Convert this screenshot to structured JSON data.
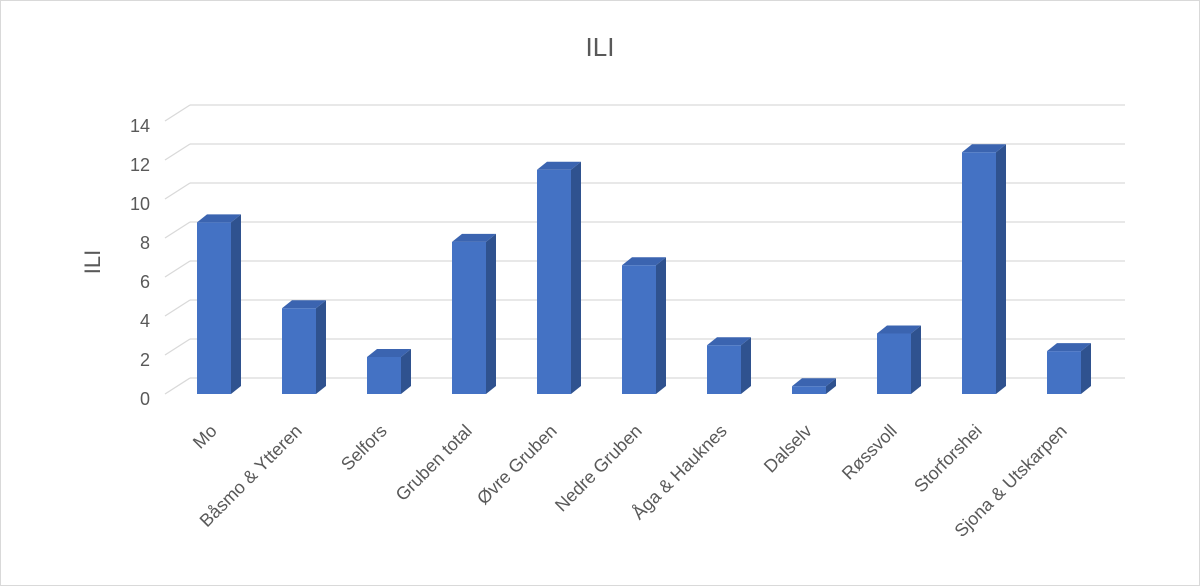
{
  "chart_data": {
    "type": "bar3d",
    "title": "ILI",
    "y_label": "ILI",
    "categories": [
      "Mo",
      "Båsmo & Ytteren",
      "Selfors",
      "Gruben total",
      "Øvre Gruben",
      "Nedre Gruben",
      "Åga & Hauknes",
      "Dalselv",
      "Røssvoll",
      "Storforshei",
      "Sjona & Utskarpen"
    ],
    "values": [
      8.8,
      4.4,
      1.9,
      7.8,
      11.5,
      6.6,
      2.5,
      0.4,
      3.1,
      12.4,
      2.2
    ],
    "color": "#4472c4",
    "side_color": "#2f528f",
    "top_color": "#3b64b0",
    "ylim": [
      0,
      14
    ],
    "yticks": [
      0,
      2,
      4,
      6,
      8,
      10,
      12,
      14
    ],
    "grid": true
  }
}
